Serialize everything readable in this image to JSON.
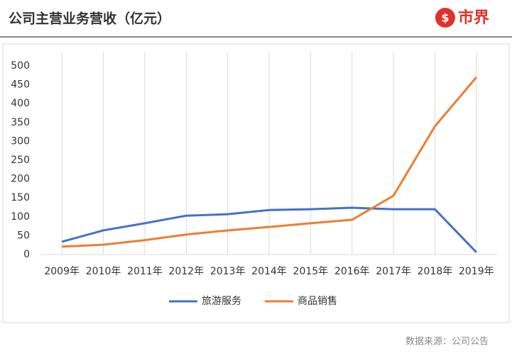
{
  "header": {
    "title": "公司主营业务营收（亿元）",
    "logo": "市界"
  },
  "chart_data": {
    "type": "line",
    "categories": [
      "2009年",
      "2010年",
      "2011年",
      "2012年",
      "2013年",
      "2014年",
      "2015年",
      "2016年",
      "2017年",
      "2018年",
      "2019年"
    ],
    "series": [
      {
        "name": "旅游服务",
        "color": "#4472c4",
        "values": [
          34,
          64,
          83,
          103,
          107,
          118,
          120,
          124,
          120,
          120,
          6
        ]
      },
      {
        "name": "商品销售",
        "color": "#ed7d31",
        "values": [
          21,
          26,
          38,
          53,
          64,
          73,
          83,
          92,
          156,
          340,
          470
        ]
      }
    ],
    "ylim": [
      0,
      500
    ],
    "yticks": [
      0,
      50,
      100,
      150,
      200,
      250,
      300,
      350,
      400,
      450,
      500
    ],
    "legend": "bottom"
  },
  "footer": {
    "source": "数据来源：公司公告"
  }
}
